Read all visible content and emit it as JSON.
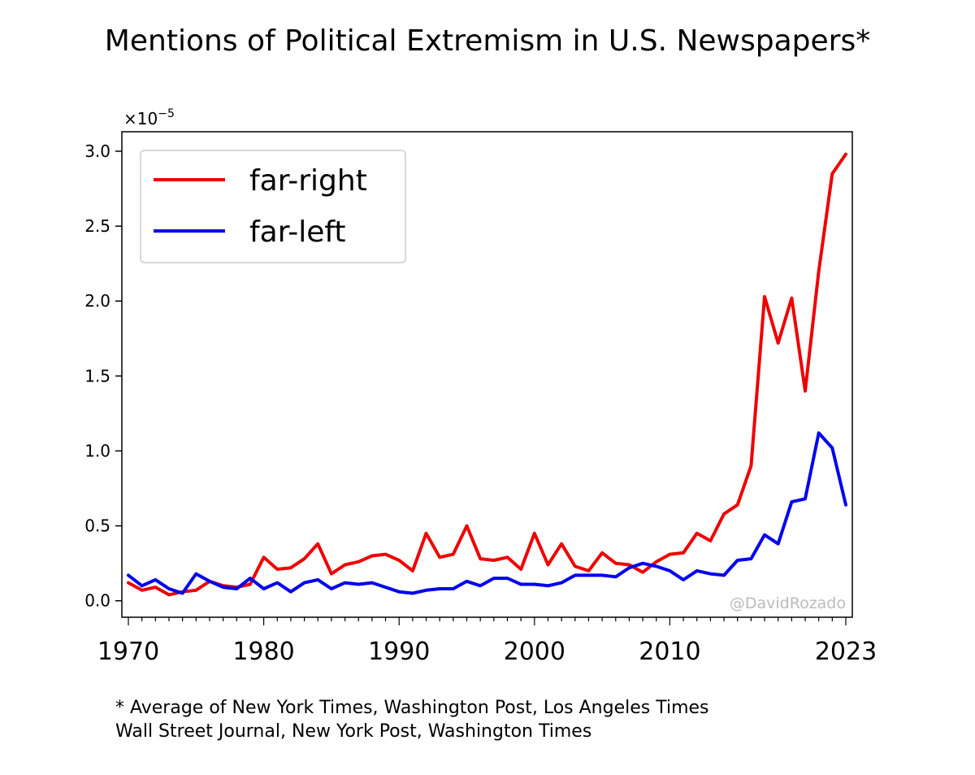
{
  "title": "Mentions of Political Extremism in U.S. Newspapers*",
  "footnote": {
    "line1": "* Average of New York Times, Washington Post, Los Angeles Times",
    "line2": "Wall Street Journal, New York Post, Washington Times"
  },
  "watermark": "@DavidRozado",
  "colors": {
    "far_right": "#ee0000",
    "far_left": "#0000ee",
    "axis": "#000000",
    "watermark": "#bbbbbb"
  },
  "chart_data": {
    "type": "line",
    "title": "Mentions of Political Extremism in U.S. Newspapers*",
    "xlabel": "",
    "ylabel": "",
    "y_multiplier": "×10",
    "y_exponent": "−5",
    "xlim": [
      1970,
      2023
    ],
    "ylim": [
      -0.11,
      3.13
    ],
    "x_ticks": [
      1970,
      1980,
      1990,
      2000,
      2010,
      2023
    ],
    "y_ticks": [
      0.0,
      0.5,
      1.0,
      1.5,
      2.0,
      2.5,
      3.0
    ],
    "y_tick_labels": [
      "0.0",
      "0.5",
      "1.0",
      "1.5",
      "2.0",
      "2.5",
      "3.0"
    ],
    "legend_position": "top-left",
    "x": [
      1970,
      1971,
      1972,
      1973,
      1974,
      1975,
      1976,
      1977,
      1978,
      1979,
      1980,
      1981,
      1982,
      1983,
      1984,
      1985,
      1986,
      1987,
      1988,
      1989,
      1990,
      1991,
      1992,
      1993,
      1994,
      1995,
      1996,
      1997,
      1998,
      1999,
      2000,
      2001,
      2002,
      2003,
      2004,
      2005,
      2006,
      2007,
      2008,
      2009,
      2010,
      2011,
      2012,
      2013,
      2014,
      2015,
      2016,
      2017,
      2018,
      2019,
      2020,
      2021,
      2022,
      2023
    ],
    "series": [
      {
        "name": "far-right",
        "color": "#ee0000",
        "values": [
          0.12,
          0.07,
          0.09,
          0.04,
          0.06,
          0.07,
          0.13,
          0.1,
          0.09,
          0.11,
          0.29,
          0.21,
          0.22,
          0.28,
          0.38,
          0.18,
          0.24,
          0.26,
          0.3,
          0.31,
          0.27,
          0.2,
          0.45,
          0.29,
          0.31,
          0.5,
          0.28,
          0.27,
          0.29,
          0.21,
          0.45,
          0.24,
          0.38,
          0.23,
          0.2,
          0.32,
          0.25,
          0.24,
          0.19,
          0.26,
          0.31,
          0.32,
          0.45,
          0.4,
          0.58,
          0.64,
          0.9,
          2.03,
          1.72,
          2.02,
          1.4,
          2.2,
          2.85,
          2.98
        ]
      },
      {
        "name": "far-left",
        "color": "#0000ee",
        "values": [
          0.17,
          0.1,
          0.14,
          0.08,
          0.05,
          0.18,
          0.13,
          0.09,
          0.08,
          0.15,
          0.08,
          0.12,
          0.06,
          0.12,
          0.14,
          0.08,
          0.12,
          0.11,
          0.12,
          0.09,
          0.06,
          0.05,
          0.07,
          0.08,
          0.08,
          0.13,
          0.1,
          0.15,
          0.15,
          0.11,
          0.11,
          0.1,
          0.12,
          0.17,
          0.17,
          0.17,
          0.16,
          0.22,
          0.25,
          0.23,
          0.2,
          0.14,
          0.2,
          0.18,
          0.17,
          0.27,
          0.28,
          0.44,
          0.38,
          0.66,
          0.68,
          1.12,
          1.02,
          0.64
        ]
      }
    ]
  }
}
